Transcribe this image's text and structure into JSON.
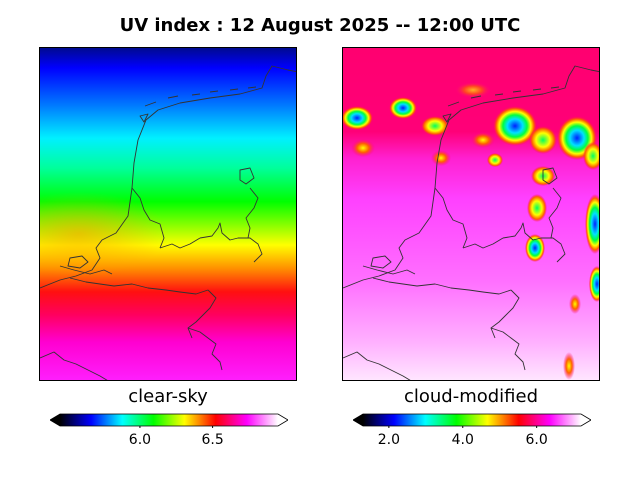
{
  "title": "UV index :  12 August 2025  --  12:00 UTC",
  "panels": [
    {
      "label": "clear-sky",
      "colorbar": {
        "min": 5.45,
        "max": 6.95,
        "ticks": [
          "6.0",
          "6.5"
        ],
        "tick_values": [
          6.0,
          6.5
        ]
      }
    },
    {
      "label": "cloud-modified",
      "colorbar": {
        "min": 1.3,
        "max": 7.2,
        "ticks": [
          "2.0",
          "4.0",
          "6.0"
        ],
        "tick_values": [
          2.0,
          4.0,
          6.0
        ]
      }
    }
  ],
  "colors": {
    "colormap": [
      "#000000",
      "#000080",
      "#0000ff",
      "#0080ff",
      "#00ffff",
      "#00ff80",
      "#00ff00",
      "#80ff00",
      "#ffff00",
      "#ff8000",
      "#ff0000",
      "#ff0080",
      "#ff00ff",
      "#ff80ff",
      "#ffffff"
    ],
    "coastline": "#333333"
  }
}
